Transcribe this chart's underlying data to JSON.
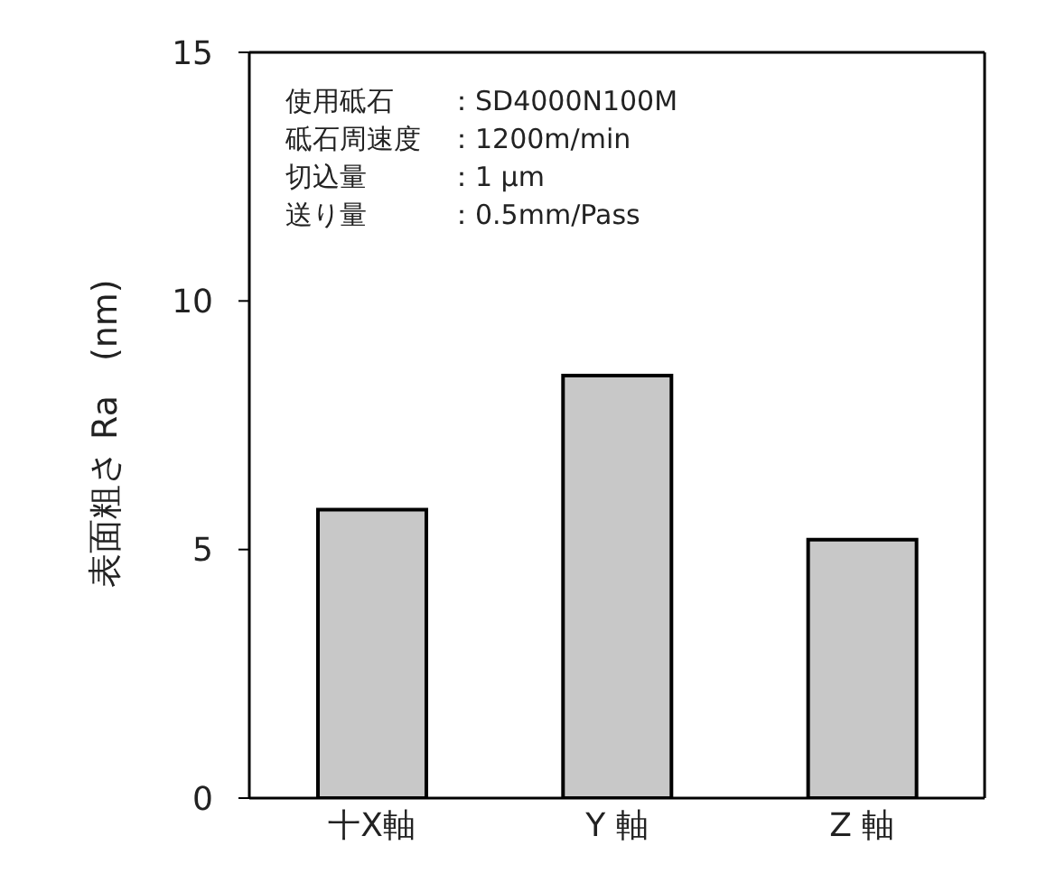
{
  "chart_data": {
    "type": "bar",
    "ylabel": "表面粗さ Ra　(nm)",
    "categories": [
      "十X軸",
      "Y 軸",
      "Z 軸"
    ],
    "values": [
      5.8,
      8.5,
      5.2
    ],
    "color": "#c8c8c8",
    "ylim": [
      0,
      15
    ],
    "yticks": [
      0,
      5,
      10,
      15
    ],
    "grid": false,
    "annotations": [
      "使用砥石　　：SD4000N100M",
      "砥石周速度　：1200m/min",
      "切込量　　　：1 μm",
      "送り量　　　：0.5mm/Pass"
    ]
  }
}
